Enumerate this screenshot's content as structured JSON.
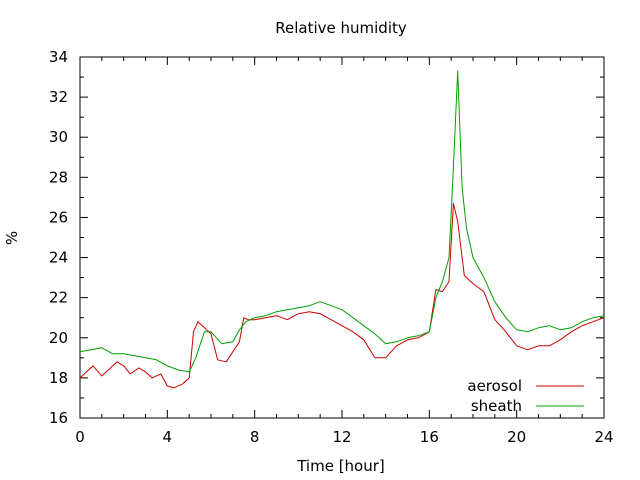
{
  "chart_data": {
    "type": "line",
    "title": "Relative humidity",
    "xlabel": "Time [hour]",
    "ylabel": "%",
    "xlim": [
      0,
      24
    ],
    "ylim": [
      16,
      34
    ],
    "x_ticks": [
      0,
      4,
      8,
      12,
      16,
      20,
      24
    ],
    "y_ticks": [
      16,
      18,
      20,
      22,
      24,
      26,
      28,
      30,
      32,
      34
    ],
    "grid": false,
    "legend_position": "bottom-right",
    "series": [
      {
        "name": "aerosol",
        "color": "#cc0000",
        "x": [
          0,
          0.3,
          0.6,
          1,
          1.3,
          1.7,
          2,
          2.3,
          2.7,
          3,
          3.3,
          3.7,
          4,
          4.3,
          4.7,
          5,
          5.2,
          5.4,
          5.8,
          6,
          6.3,
          6.7,
          7,
          7.3,
          7.5,
          7.7,
          8,
          8.5,
          9,
          9.5,
          10,
          10.5,
          11,
          11.5,
          12,
          12.5,
          13,
          13.5,
          14,
          14.5,
          15,
          15.5,
          16,
          16.3,
          16.6,
          16.9,
          17.1,
          17.3,
          17.6,
          18,
          18.5,
          19,
          19.5,
          20,
          20.5,
          21,
          21.5,
          22,
          22.5,
          23,
          23.5,
          24
        ],
        "values": [
          18.0,
          18.3,
          18.6,
          18.1,
          18.4,
          18.8,
          18.6,
          18.2,
          18.5,
          18.3,
          18.0,
          18.2,
          17.6,
          17.5,
          17.7,
          18.0,
          20.3,
          20.8,
          20.4,
          20.2,
          18.9,
          18.8,
          19.3,
          19.8,
          21.0,
          20.9,
          20.9,
          21.0,
          21.1,
          20.9,
          21.2,
          21.3,
          21.2,
          20.9,
          20.6,
          20.3,
          19.9,
          19.0,
          19.0,
          19.6,
          19.9,
          20.0,
          20.3,
          22.4,
          22.3,
          22.8,
          26.7,
          25.8,
          23.1,
          22.7,
          22.3,
          20.9,
          20.3,
          19.6,
          19.4,
          19.6,
          19.6,
          19.9,
          20.3,
          20.6,
          20.8,
          21.0
        ]
      },
      {
        "name": "sheath",
        "color": "#00a000",
        "x": [
          0,
          0.5,
          1,
          1.5,
          2,
          2.5,
          3,
          3.5,
          4,
          4.5,
          5,
          5.3,
          5.7,
          6,
          6.5,
          7,
          7.3,
          7.6,
          8,
          8.5,
          9,
          9.5,
          10,
          10.5,
          11,
          11.5,
          12,
          12.5,
          13,
          13.5,
          14,
          14.5,
          15,
          15.5,
          16,
          16.3,
          16.6,
          16.9,
          17.1,
          17.3,
          17.5,
          17.7,
          18,
          18.5,
          19,
          19.5,
          20,
          20.5,
          21,
          21.5,
          22,
          22.5,
          23,
          23.5,
          24
        ],
        "values": [
          19.3,
          19.4,
          19.5,
          19.2,
          19.2,
          19.1,
          19.0,
          18.9,
          18.6,
          18.4,
          18.3,
          19.0,
          20.3,
          20.3,
          19.7,
          19.8,
          20.4,
          20.8,
          21.0,
          21.1,
          21.3,
          21.4,
          21.5,
          21.6,
          21.8,
          21.6,
          21.4,
          21.0,
          20.6,
          20.2,
          19.7,
          19.8,
          20.0,
          20.1,
          20.3,
          22.0,
          22.8,
          24.0,
          28.5,
          33.3,
          27.5,
          25.5,
          24.0,
          23.0,
          21.8,
          21.0,
          20.4,
          20.3,
          20.5,
          20.6,
          20.4,
          20.5,
          20.8,
          21.0,
          21.1
        ]
      }
    ]
  }
}
